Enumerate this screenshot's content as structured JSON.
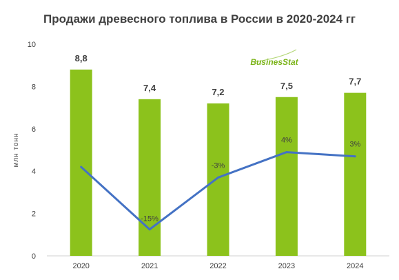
{
  "chart_data": {
    "type": "bar",
    "title": "Продажи древесного топлива в России в 2020-2024 гг",
    "ylabel": "млн тонн",
    "ylim": [
      0,
      10
    ],
    "yticks": [
      0,
      2,
      4,
      6,
      8,
      10
    ],
    "categories": [
      "2020",
      "2021",
      "2022",
      "2023",
      "2024"
    ],
    "series": [
      {
        "type": "bar",
        "values": [
          8.8,
          7.4,
          7.2,
          7.5,
          7.7
        ],
        "labels": [
          "8,8",
          "7,4",
          "7,2",
          "7,5",
          "7,7"
        ],
        "color": "#8cc21c"
      },
      {
        "type": "line",
        "values": [
          4.2,
          1.25,
          3.7,
          4.9,
          4.7
        ],
        "labels": [
          "",
          "-15%",
          "-3%",
          "4%",
          "3%"
        ],
        "color": "#4472c4"
      }
    ],
    "grid": false,
    "legend": "none"
  },
  "logo": {
    "text": "BusinesStat",
    "color": "#7ab317"
  }
}
